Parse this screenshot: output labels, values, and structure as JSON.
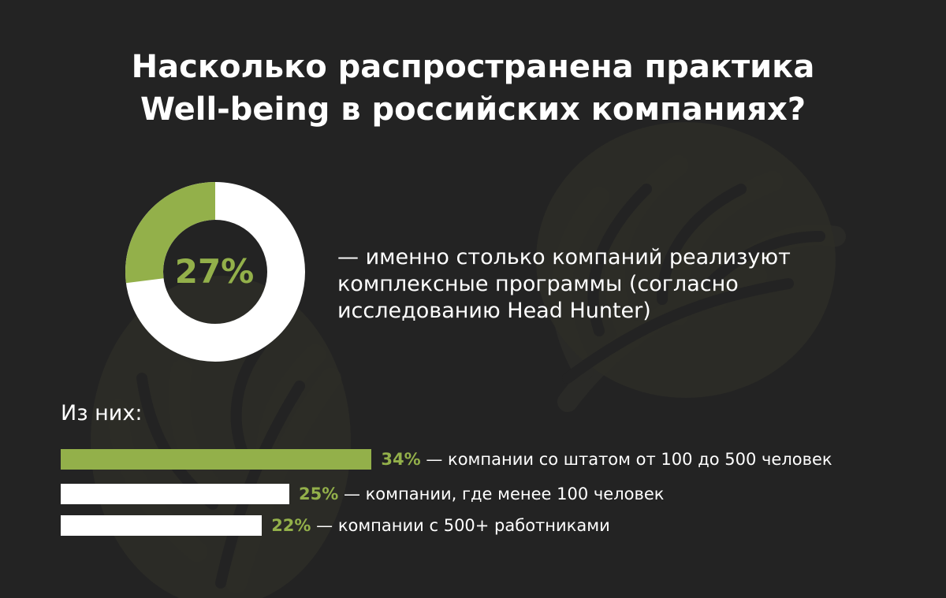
{
  "title": {
    "line1": "Насколько распространена практика",
    "line2": "Well-being в российских компаниях?"
  },
  "colors": {
    "background": "#232323",
    "accent": "#93b04a",
    "light": "#ffffff"
  },
  "donut": {
    "label": "27%",
    "caption": "— именно столько компаний реализуют комплексные программы (согласно исследованию Head Hunter)"
  },
  "subheading": "Из них:",
  "chart_data": [
    {
      "type": "pie",
      "title": "",
      "values": [
        27,
        73
      ],
      "colors": [
        "#93b04a",
        "#ffffff"
      ],
      "center_label": "27%"
    },
    {
      "type": "bar",
      "title": "",
      "orientation": "horizontal",
      "categories": [
        "компании со штатом от 100 до 500 человек",
        "компании, где менее 100 человек",
        "компании с 500+ работниками"
      ],
      "values": [
        34,
        25,
        22
      ],
      "value_labels": [
        "34%",
        "25%",
        "22%"
      ],
      "colors": [
        "#93b04a",
        "#ffffff",
        "#ffffff"
      ],
      "xlim": [
        0,
        100
      ],
      "grid": false
    }
  ]
}
